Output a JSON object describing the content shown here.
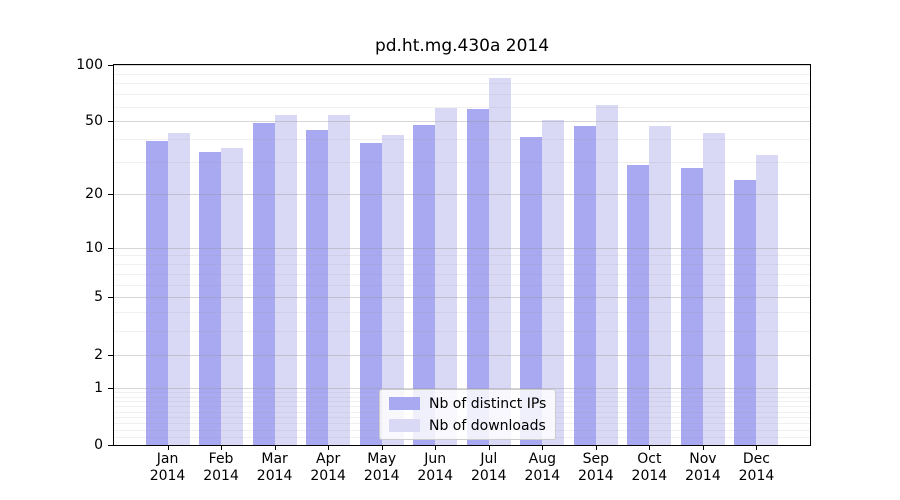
{
  "chart_data": {
    "type": "bar",
    "title": "pd.ht.mg.430a 2014",
    "categories": [
      "Jan",
      "Feb",
      "Mar",
      "Apr",
      "May",
      "Jun",
      "Jul",
      "Aug",
      "Sep",
      "Oct",
      "Nov",
      "Dec"
    ],
    "x_tick_year": "2014",
    "series": [
      {
        "name": "Nb of distinct IPs",
        "color": "#a9a9f2",
        "values": [
          39,
          34,
          49,
          45,
          38,
          48,
          58,
          41,
          47,
          29,
          28,
          24
        ]
      },
      {
        "name": "Nb of downloads",
        "color": "#d9d9f6",
        "values": [
          43,
          36,
          54,
          54,
          42,
          59,
          85,
          51,
          61,
          47,
          43,
          33
        ]
      }
    ],
    "y_axis": {
      "scale": "log1p",
      "ticks": [
        0,
        1,
        2,
        5,
        10,
        20,
        50,
        100
      ],
      "minor_gridlines": [
        0.1,
        0.2,
        0.3,
        0.4,
        0.5,
        0.6,
        0.7,
        0.8,
        0.9,
        3,
        4,
        6,
        7,
        8,
        9,
        30,
        40,
        60,
        70,
        80,
        90
      ],
      "ylim": [
        0,
        100
      ]
    },
    "grid": true,
    "legend_position": "lower center",
    "colors": {
      "spine": "#000000",
      "grid_major": "#d8d8d8",
      "grid_minor": "#efefef",
      "legend_border": "#cccccc"
    }
  }
}
